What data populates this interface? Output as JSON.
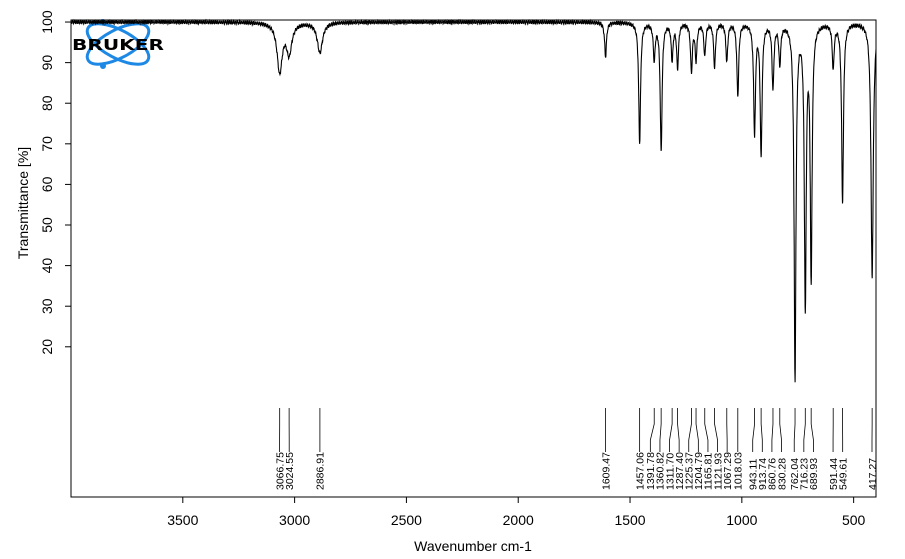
{
  "chart_data": {
    "type": "line",
    "title": "",
    "xlabel": "Wavenumber cm-1",
    "ylabel": "Transmittance [%]",
    "xlim": [
      4000,
      400
    ],
    "ylim": [
      -17,
      100.5
    ],
    "x_reversed": true,
    "xticks": [
      3500,
      3000,
      2500,
      2000,
      1500,
      1000,
      500
    ],
    "yticks": [
      20,
      30,
      40,
      50,
      60,
      70,
      80,
      90,
      100
    ],
    "grid": false,
    "line_color": "#000000",
    "peaks": [
      {
        "wavenumber": 3066.75,
        "label": "3066.75",
        "transmittance": 87.8
      },
      {
        "wavenumber": 3024.55,
        "label": "3024.55",
        "transmittance": 92.5
      },
      {
        "wavenumber": 2886.91,
        "label": "2886.91",
        "transmittance": 92.5
      },
      {
        "wavenumber": 1609.47,
        "label": "1609.47",
        "transmittance": 91.5
      },
      {
        "wavenumber": 1457.06,
        "label": "1457.06",
        "transmittance": 70.3
      },
      {
        "wavenumber": 1391.78,
        "label": "1391.78",
        "transmittance": 91.0
      },
      {
        "wavenumber": 1360.82,
        "label": "1360.82",
        "transmittance": 68.3
      },
      {
        "wavenumber": 1311.7,
        "label": "1311.70",
        "transmittance": 91.0
      },
      {
        "wavenumber": 1287.4,
        "label": "1287.40",
        "transmittance": 89.0
      },
      {
        "wavenumber": 1225.37,
        "label": "1225.37",
        "transmittance": 88.0
      },
      {
        "wavenumber": 1204.79,
        "label": "1204.79",
        "transmittance": 91.0
      },
      {
        "wavenumber": 1165.81,
        "label": "1165.81",
        "transmittance": 92.0
      },
      {
        "wavenumber": 1121.93,
        "label": "1121.93",
        "transmittance": 89.0
      },
      {
        "wavenumber": 1067.29,
        "label": "1067.29",
        "transmittance": 90.5
      },
      {
        "wavenumber": 1018.03,
        "label": "1018.03",
        "transmittance": 82.0
      },
      {
        "wavenumber": 943.11,
        "label": "943.11",
        "transmittance": 72.7
      },
      {
        "wavenumber": 913.74,
        "label": "913.74",
        "transmittance": 67.3
      },
      {
        "wavenumber": 860.76,
        "label": "860.76",
        "transmittance": 84.0
      },
      {
        "wavenumber": 830.28,
        "label": "830.28",
        "transmittance": 90.0
      },
      {
        "wavenumber": 762.04,
        "label": "762.04",
        "transmittance": 11.3
      },
      {
        "wavenumber": 716.23,
        "label": "716.23",
        "transmittance": 28.7
      },
      {
        "wavenumber": 689.93,
        "label": "689.93",
        "transmittance": 36.0
      },
      {
        "wavenumber": 591.44,
        "label": "591.44",
        "transmittance": 89.0
      },
      {
        "wavenumber": 549.61,
        "label": "549.61",
        "transmittance": 55.8
      },
      {
        "wavenumber": 417.27,
        "label": "417.27",
        "transmittance": 37.0
      }
    ]
  },
  "logo": {
    "text": "BRUKER",
    "color": "#1e88e5"
  }
}
